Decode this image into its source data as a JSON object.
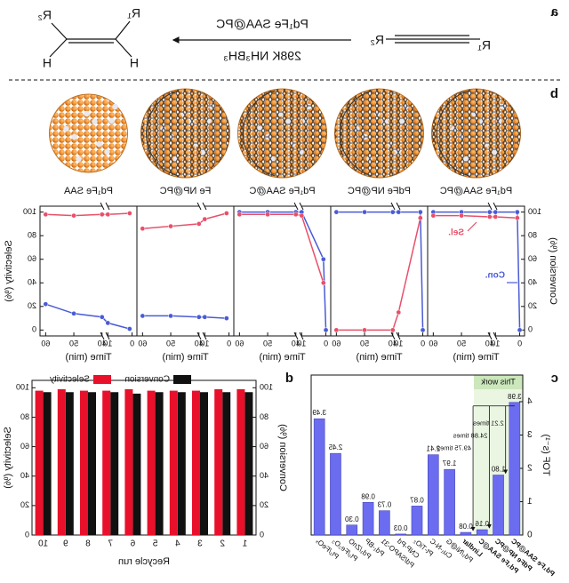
{
  "panel_labels": [
    "a",
    "b",
    "c",
    "d"
  ],
  "scheme": {
    "reactant": {
      "r1": "R₁",
      "r2": "R₂"
    },
    "product": {
      "r1": "R₁",
      "r2": "R₂",
      "h1": "H",
      "h2": "H"
    },
    "catalyst": "Pd₁Fe SAA@PC",
    "conditions": "298K  NH₃BH₃"
  },
  "chart_data": [
    {
      "type": "line",
      "title": "Pd₁Fe SAA@PC",
      "xlabel": "Time (min)",
      "ylabel": "Conversion (%)",
      "x": [
        0,
        1,
        10,
        40,
        50,
        60
      ],
      "xlim": [
        -2,
        62
      ],
      "xbreak": [
        10,
        40
      ],
      "xticks": [
        0,
        10,
        40,
        50,
        60
      ],
      "ylim": [
        -5,
        105
      ],
      "yticks": [
        0,
        20,
        40,
        60,
        80,
        100
      ],
      "series": [
        {
          "name": "Con.",
          "color": "#4a5bd6",
          "values": [
            0,
            100,
            100,
            100,
            100,
            100
          ]
        },
        {
          "name": "Sel.",
          "color": "#e8506a",
          "values": [
            null,
            95,
            96,
            96,
            97,
            97
          ]
        }
      ]
    },
    {
      "type": "line",
      "title": "PdFe NP@PC",
      "xlabel": "Time (min)",
      "x": [
        0,
        1,
        10,
        40,
        50,
        60
      ],
      "xlim": [
        -2,
        62
      ],
      "xbreak": [
        10,
        40
      ],
      "xticks": [
        0,
        10,
        40,
        50,
        60
      ],
      "ylim": [
        -5,
        105
      ],
      "series": [
        {
          "color": "#4a5bd6",
          "values": [
            0,
            100,
            100,
            100,
            100,
            100
          ]
        },
        {
          "color": "#e8506a",
          "values": [
            null,
            95,
            15,
            0,
            0,
            0
          ]
        }
      ]
    },
    {
      "type": "line",
      "title": "Pd₁Fe SAA@C",
      "xlabel": "Time (min)",
      "x": [
        0,
        1,
        10,
        40,
        50,
        60
      ],
      "xlim": [
        -2,
        62
      ],
      "xbreak": [
        10,
        40
      ],
      "xticks": [
        0,
        10,
        40,
        50,
        60
      ],
      "ylim": [
        -5,
        105
      ],
      "series": [
        {
          "color": "#4a5bd6",
          "values": [
            0,
            60,
            100,
            100,
            100,
            100
          ]
        },
        {
          "color": "#e8506a",
          "values": [
            null,
            40,
            97,
            98,
            98,
            98
          ]
        }
      ]
    },
    {
      "type": "line",
      "title": "Fe NP@PC",
      "xlabel": "Time (min)",
      "x": [
        1,
        10,
        40,
        50,
        60
      ],
      "xlim": [
        -2,
        62
      ],
      "xbreak": [
        10,
        40
      ],
      "xticks": [
        0,
        10,
        40,
        50,
        60
      ],
      "ylim": [
        -5,
        105
      ],
      "series": [
        {
          "color": "#4a5bd6",
          "values": [
            10,
            11,
            11,
            12,
            12
          ]
        },
        {
          "color": "#e8506a",
          "values": [
            99,
            94,
            90,
            88,
            86
          ]
        }
      ]
    },
    {
      "type": "line",
      "title": "Pd₁Fe SAA",
      "xlabel": "Time (min)",
      "y2label": "Selectivity (%)",
      "x": [
        1,
        10,
        40,
        50,
        60
      ],
      "xlim": [
        -2,
        62
      ],
      "xbreak": [
        10,
        40
      ],
      "xticks": [
        0,
        10,
        40,
        50,
        60
      ],
      "ylim": [
        -5,
        105
      ],
      "y2lim": [
        -5,
        105
      ],
      "y2ticks": [
        0,
        20,
        40,
        60,
        80,
        100
      ],
      "series": [
        {
          "color": "#4a5bd6",
          "values": [
            1,
            6,
            11,
            14,
            22
          ]
        },
        {
          "color": "#e8506a",
          "axis": "y2",
          "values": [
            99,
            98,
            98,
            97,
            98
          ]
        }
      ]
    },
    {
      "type": "bar",
      "ylabel": "TOF (s⁻¹)",
      "highlight": "This work",
      "categories": [
        "Pd₁Fe SAA@PC",
        "PdFe NP@PC",
        "Pd₁Fe SAA@C",
        "Lindlar",
        "Pd₁/Ni@G",
        "Cu₁-N-C",
        "Pt-TiO₂",
        "CNP-Pd",
        "Pd/SAPO-31",
        "Pd₁-BP",
        "Pd₁/ZnO",
        "Pt₁/Fe₂O₃",
        "Pt₁/FeOₓ"
      ],
      "values": [
        3.98,
        1.8,
        0.16,
        0.08,
        1.97,
        2.41,
        0.87,
        0.03,
        0.73,
        0.98,
        0.3,
        2.45,
        3.49
      ],
      "value_labels": [
        "3.98",
        "1.80",
        "0.16",
        "0.08",
        "1.97",
        "2.41",
        "0.87",
        "0.03",
        "0.73",
        "0.98",
        "0.30",
        "2.45",
        "3.49"
      ],
      "color": "#6b6cf0",
      "bold_count": 4,
      "annotations": [
        "2.21 times",
        "24.88 times",
        "49.75 times"
      ],
      "ylim": [
        0,
        4.8
      ],
      "yticks": [
        0,
        1,
        2,
        3,
        4
      ]
    },
    {
      "type": "grouped_bar",
      "xlabel": "Recycle run",
      "ylabel": "Conversion (%)",
      "y2label": "Selectivity (%)",
      "categories": [
        1,
        2,
        3,
        4,
        5,
        6,
        7,
        8,
        9,
        10
      ],
      "ylim": [
        0,
        105
      ],
      "yticks": [
        0,
        20,
        40,
        60,
        80,
        100
      ],
      "y2lim": [
        0,
        105
      ],
      "y2ticks": [
        0,
        20,
        40,
        60,
        80,
        100
      ],
      "series": [
        {
          "name": "Conversion",
          "color": "#111111",
          "values": [
            97,
            97,
            97,
            97,
            97,
            96,
            97,
            97,
            97,
            97
          ]
        },
        {
          "name": "Selectivity",
          "color": "#e8102a",
          "axis": "y2",
          "values": [
            99,
            99,
            98,
            98,
            98,
            99,
            98,
            98,
            99,
            98
          ]
        }
      ]
    }
  ]
}
